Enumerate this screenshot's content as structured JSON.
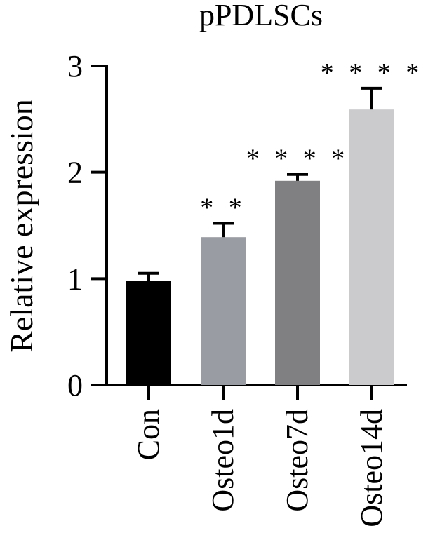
{
  "chart_data": {
    "type": "bar",
    "title": "pPDLSCs",
    "xlabel": "",
    "ylabel": "Relative expression",
    "categories": [
      "Con",
      "Osteo1d",
      "Osteo7d",
      "Osteo14d"
    ],
    "values": [
      0.98,
      1.39,
      1.92,
      2.59
    ],
    "errors": [
      0.07,
      0.13,
      0.06,
      0.2
    ],
    "significance": [
      "",
      "**",
      "****",
      "****"
    ],
    "colors": [
      "#000000",
      "#9a9ca3",
      "#808083",
      "#cbcbcd"
    ],
    "ylim": [
      0,
      3
    ],
    "yticks": [
      "0",
      "1",
      "2",
      "3"
    ],
    "grid": false
  }
}
